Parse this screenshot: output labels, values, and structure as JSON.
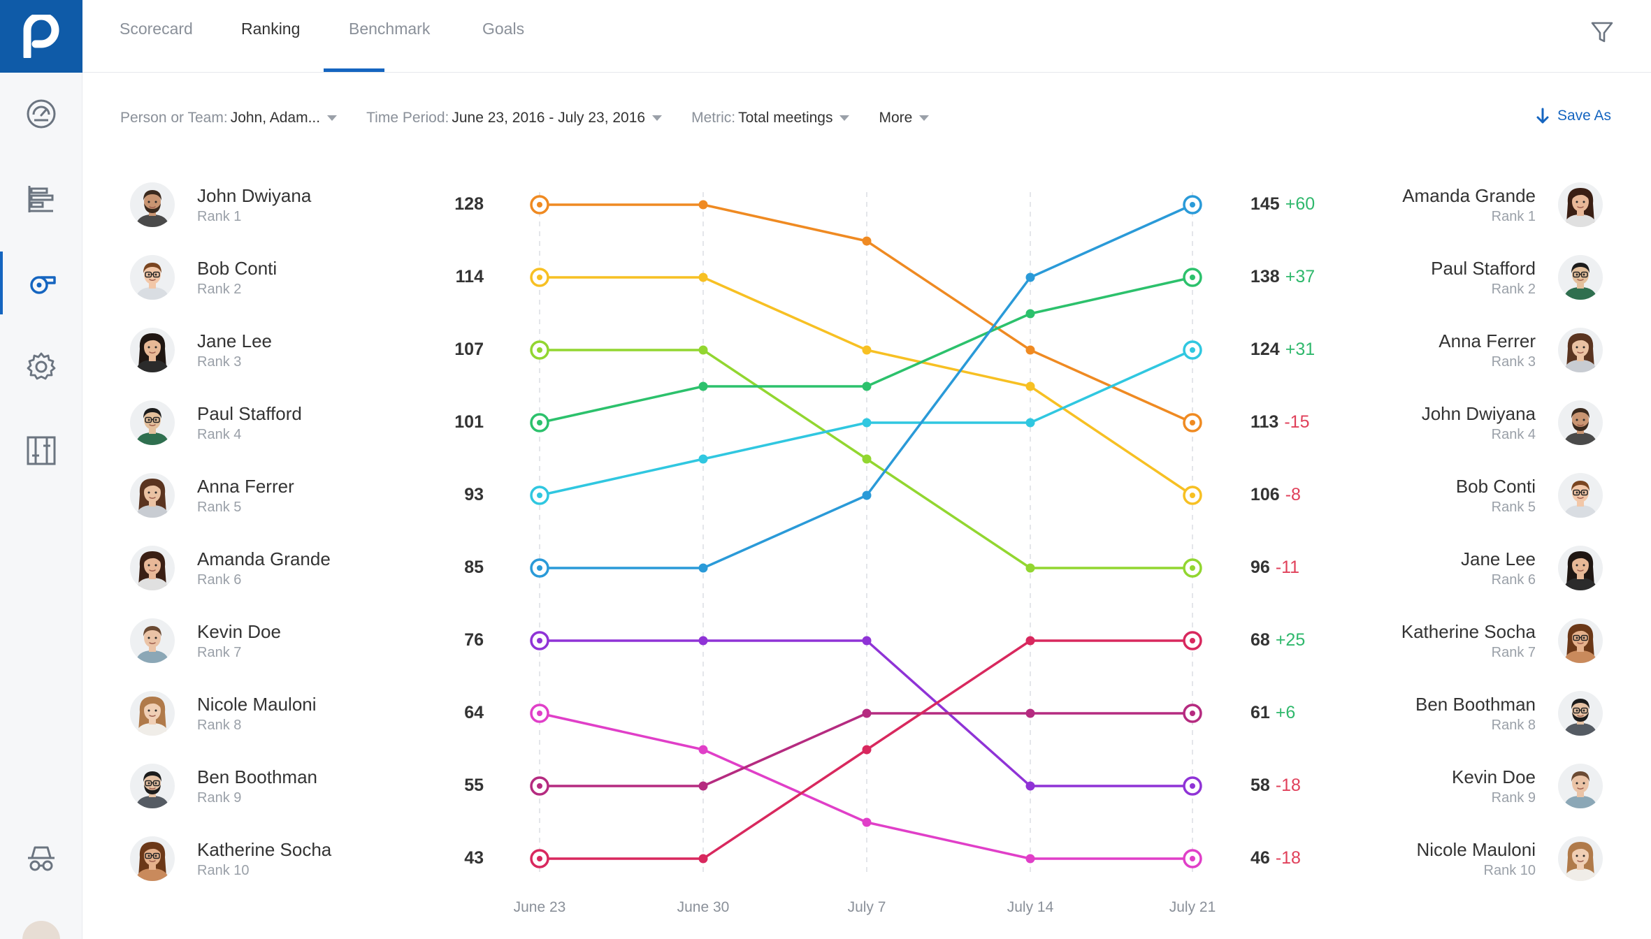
{
  "app": {
    "logo_letter": "p",
    "brand_color": "#0f5ba8",
    "accent_color": "#1565c0"
  },
  "sidebar": {
    "items": [
      {
        "icon": "dashboard-icon",
        "active": false
      },
      {
        "icon": "bar-chart-icon",
        "active": false
      },
      {
        "icon": "whistle-icon",
        "active": true
      },
      {
        "icon": "gear-icon",
        "active": false
      },
      {
        "icon": "sliders-icon",
        "active": false
      },
      {
        "icon": "incognito-icon",
        "active": false
      }
    ]
  },
  "tabs": [
    {
      "label": "Scorecard",
      "active": false
    },
    {
      "label": "Ranking",
      "active": true
    },
    {
      "label": "Benchmark",
      "active": false
    },
    {
      "label": "Goals",
      "active": false
    }
  ],
  "filters": {
    "person": {
      "label": "Person or Team:",
      "value": "John, Adam..."
    },
    "period": {
      "label": "Time Period:",
      "value": "June 23, 2016 - July 23, 2016"
    },
    "metric": {
      "label": "Metric:",
      "value": "Total meetings"
    },
    "more": {
      "label": "More"
    },
    "save_as": "Save As"
  },
  "left_list": [
    {
      "name": "John Dwiyana",
      "rank": "Rank 1",
      "value": "128"
    },
    {
      "name": "Bob Conti",
      "rank": "Rank 2",
      "value": "114"
    },
    {
      "name": "Jane Lee",
      "rank": "Rank 3",
      "value": "107"
    },
    {
      "name": "Paul Stafford",
      "rank": "Rank 4",
      "value": "101"
    },
    {
      "name": "Anna Ferrer",
      "rank": "Rank 5",
      "value": "93"
    },
    {
      "name": "Amanda Grande",
      "rank": "Rank 6",
      "value": "85"
    },
    {
      "name": "Kevin Doe",
      "rank": "Rank 7",
      "value": "76"
    },
    {
      "name": "Nicole Mauloni",
      "rank": "Rank 8",
      "value": "64"
    },
    {
      "name": "Ben Boothman",
      "rank": "Rank 9",
      "value": "55"
    },
    {
      "name": "Katherine Socha",
      "rank": "Rank 10",
      "value": "43"
    }
  ],
  "right_list": [
    {
      "name": "Amanda Grande",
      "rank": "Rank 1",
      "value": "145",
      "delta": "+60",
      "positive": true
    },
    {
      "name": "Paul Stafford",
      "rank": "Rank 2",
      "value": "138",
      "delta": "+37",
      "positive": true
    },
    {
      "name": "Anna Ferrer",
      "rank": "Rank 3",
      "value": "124",
      "delta": "+31",
      "positive": true
    },
    {
      "name": "John Dwiyana",
      "rank": "Rank 4",
      "value": "113",
      "delta": "-15",
      "positive": false
    },
    {
      "name": "Bob Conti",
      "rank": "Rank 5",
      "value": "106",
      "delta": "-8",
      "positive": false
    },
    {
      "name": "Jane Lee",
      "rank": "Rank 6",
      "value": "96",
      "delta": "-11",
      "positive": false
    },
    {
      "name": "Katherine Socha",
      "rank": "Rank 7",
      "value": "68",
      "delta": "+25",
      "positive": true
    },
    {
      "name": "Ben Boothman",
      "rank": "Rank 8",
      "value": "61",
      "delta": "+6",
      "positive": true
    },
    {
      "name": "Kevin Doe",
      "rank": "Rank 9",
      "value": "58",
      "delta": "-18",
      "positive": false
    },
    {
      "name": "Nicole Mauloni",
      "rank": "Rank 10",
      "value": "46",
      "delta": "-18",
      "positive": false
    }
  ],
  "colors": {
    "positive": "#2fb86c",
    "negative": "#e0405a"
  },
  "chart_data": {
    "type": "line",
    "subtype": "bump (rank) chart",
    "x": [
      "June 23",
      "June 30",
      "July 7",
      "July 14",
      "July 21"
    ],
    "y_axis": "rank",
    "ylim": [
      1,
      10
    ],
    "y_inverted": true,
    "grid": "vertical dashed at each x",
    "series": [
      {
        "name": "John Dwiyana",
        "color": "#ef8a22",
        "ranks": [
          1,
          1,
          1.5,
          3,
          4
        ]
      },
      {
        "name": "Bob Conti",
        "color": "#f7c023",
        "ranks": [
          2,
          2,
          3,
          3.5,
          5
        ]
      },
      {
        "name": "Jane Lee",
        "color": "#92d630",
        "ranks": [
          3,
          3,
          4.5,
          6,
          6
        ]
      },
      {
        "name": "Paul Stafford",
        "color": "#2cc16c",
        "ranks": [
          4,
          3.5,
          3.5,
          2.5,
          2
        ]
      },
      {
        "name": "Anna Ferrer",
        "color": "#30c7e0",
        "ranks": [
          5,
          4.5,
          4,
          4,
          3
        ]
      },
      {
        "name": "Amanda Grande",
        "color": "#2a9ad8",
        "ranks": [
          6,
          6,
          5,
          2,
          1
        ]
      },
      {
        "name": "Kevin Doe",
        "color": "#8f33d6",
        "ranks": [
          7,
          7,
          7,
          9,
          9
        ]
      },
      {
        "name": "Nicole Mauloni",
        "color": "#e03fc8",
        "ranks": [
          8,
          8.5,
          9.5,
          10,
          10
        ]
      },
      {
        "name": "Ben Boothman",
        "color": "#b52b80",
        "ranks": [
          9,
          9,
          8,
          8,
          8
        ]
      },
      {
        "name": "Katherine Socha",
        "color": "#d8285e",
        "ranks": [
          10,
          10,
          8.5,
          7,
          7
        ]
      }
    ]
  },
  "avatars": [
    {
      "skin": "#c99572",
      "hair": "#3b2a1e",
      "shirt": "#4a4a4a",
      "beard": true,
      "glasses": false,
      "long": false
    },
    {
      "skin": "#f2c7a8",
      "hair": "#7a4520",
      "shirt": "#d9dde2",
      "beard": false,
      "glasses": true,
      "long": false
    },
    {
      "skin": "#e7b896",
      "hair": "#1f1612",
      "shirt": "#2b2b2b",
      "beard": false,
      "glasses": false,
      "long": true
    },
    {
      "skin": "#e4c09c",
      "hair": "#1c1c1c",
      "shirt": "#2f6f4f",
      "beard": false,
      "glasses": true,
      "long": false
    },
    {
      "skin": "#eac2a3",
      "hair": "#5a3420",
      "shirt": "#c8ccd2",
      "beard": false,
      "glasses": false,
      "long": true
    },
    {
      "skin": "#e8b898",
      "hair": "#3a1f14",
      "shirt": "#e0e0e0",
      "beard": false,
      "glasses": false,
      "long": true
    },
    {
      "skin": "#eac3a6",
      "hair": "#6b4a33",
      "shirt": "#8ba7b6",
      "beard": false,
      "glasses": false,
      "long": false
    },
    {
      "skin": "#f0cfb5",
      "hair": "#b07a4a",
      "shirt": "#f0ede8",
      "beard": false,
      "glasses": false,
      "long": true
    },
    {
      "skin": "#e6c2a4",
      "hair": "#1c1c1c",
      "shirt": "#555b63",
      "beard": true,
      "glasses": true,
      "long": false
    },
    {
      "skin": "#e5b18c",
      "hair": "#6b3818",
      "shirt": "#c98a5c",
      "beard": false,
      "glasses": true,
      "long": true
    }
  ]
}
